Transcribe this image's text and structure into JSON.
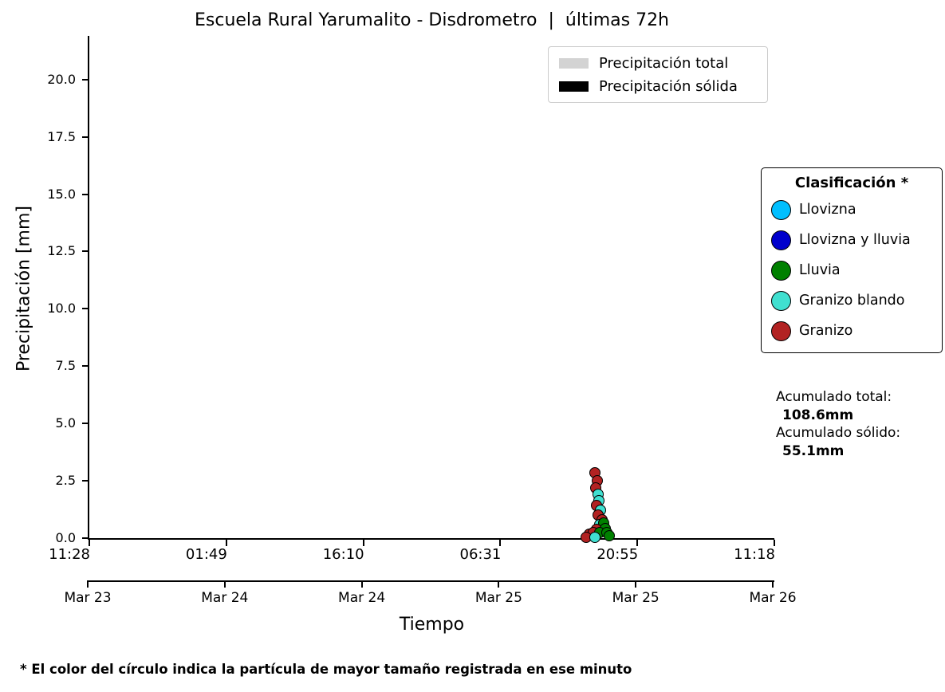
{
  "title": "Escuela Rural Yarumalito - Disdrometro  |  últimas 72h",
  "series_legend": {
    "items": [
      {
        "key": "precip_total",
        "label": "Precipitación total",
        "color": "#d3d3d3"
      },
      {
        "key": "precip_solida",
        "label": "Precipitación sólida",
        "color": "#000000"
      }
    ]
  },
  "classification_legend": {
    "title": "Clasificación *",
    "items": [
      {
        "key": "llovizna",
        "label": "Llovizna",
        "color": "#00BFFF"
      },
      {
        "key": "llovizna_y_lluvia",
        "label": "Llovizna y lluvia",
        "color": "#0000CD"
      },
      {
        "key": "lluvia",
        "label": "Lluvia",
        "color": "#008000"
      },
      {
        "key": "granizo_blando",
        "label": "Granizo blando",
        "color": "#40E0D0"
      },
      {
        "key": "granizo",
        "label": "Granizo",
        "color": "#B22222"
      }
    ]
  },
  "totals": {
    "total_label": "Acumulado total:",
    "total_value": "108.6mm",
    "solid_label": "Acumulado sólido:",
    "solid_value": "55.1mm"
  },
  "footnote": "* El color del círculo indica la partícula de mayor tamaño registrada en ese minuto",
  "chart_data": {
    "type": "scatter",
    "title": "Escuela Rural Yarumalito - Disdrometro  |  últimas 72h",
    "xlabel": "Tiempo",
    "ylabel": "Precipitación [mm]",
    "ylim": [
      0,
      21.9
    ],
    "yticks": [
      0.0,
      2.5,
      5.0,
      7.5,
      10.0,
      12.5,
      15.0,
      17.5,
      20.0
    ],
    "x_time_ticks": [
      "11:28",
      "01:49",
      "16:10",
      "06:31",
      "20:55",
      "11:18"
    ],
    "x_date_ticks": [
      "Mar 23",
      "Mar 24",
      "Mar 24",
      "Mar 25",
      "Mar 25",
      "Mar 26"
    ],
    "x_start": "Mar 23 11:28",
    "x_end": "Mar 26 11:18",
    "grid": false,
    "acumulado_total_mm": 108.6,
    "acumulado_solido_mm": 55.1,
    "points": [
      {
        "time": "Mar 25 16:28",
        "mm": 2.85,
        "class": "granizo"
      },
      {
        "time": "Mar 25 16:43",
        "mm": 2.5,
        "class": "granizo"
      },
      {
        "time": "Mar 25 16:33",
        "mm": 2.19,
        "class": "granizo"
      },
      {
        "time": "Mar 25 16:48",
        "mm": 1.91,
        "class": "granizo_blando"
      },
      {
        "time": "Mar 25 16:53",
        "mm": 1.63,
        "class": "granizo_blando"
      },
      {
        "time": "Mar 25 16:38",
        "mm": 1.42,
        "class": "granizo"
      },
      {
        "time": "Mar 25 17:03",
        "mm": 1.22,
        "class": "granizo_blando"
      },
      {
        "time": "Mar 25 16:48",
        "mm": 1.01,
        "class": "granizo"
      },
      {
        "time": "Mar 25 17:13",
        "mm": 0.8,
        "class": "granizo"
      },
      {
        "time": "Mar 25 16:58",
        "mm": 0.59,
        "class": "granizo_blando"
      },
      {
        "time": "Mar 25 17:23",
        "mm": 0.66,
        "class": "lluvia"
      },
      {
        "time": "Mar 25 16:38",
        "mm": 0.38,
        "class": "granizo"
      },
      {
        "time": "Mar 25 17:33",
        "mm": 0.42,
        "class": "lluvia"
      },
      {
        "time": "Mar 25 15:53",
        "mm": 0.17,
        "class": "granizo"
      },
      {
        "time": "Mar 25 16:18",
        "mm": 0.24,
        "class": "granizo"
      },
      {
        "time": "Mar 25 16:58",
        "mm": 0.24,
        "class": "lluvia"
      },
      {
        "time": "Mar 25 17:43",
        "mm": 0.24,
        "class": "lluvia"
      },
      {
        "time": "Mar 25 15:33",
        "mm": 0.05,
        "class": "granizo"
      },
      {
        "time": "Mar 25 16:28",
        "mm": 0.05,
        "class": "granizo_blando"
      },
      {
        "time": "Mar 25 17:58",
        "mm": 0.1,
        "class": "lluvia"
      }
    ]
  }
}
